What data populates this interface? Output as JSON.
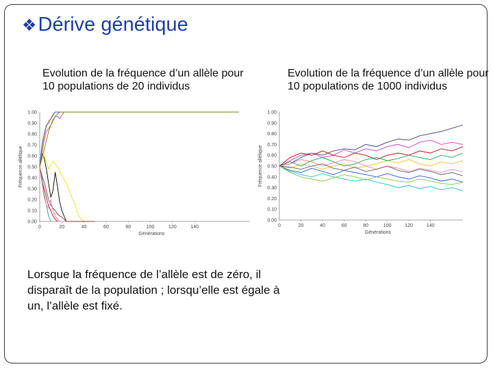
{
  "slide": {
    "title": "Dérive génétique",
    "bullet_icon": "diamond-bullet-icon",
    "body": "Lorsque la fréquence de l’allèle est de zéro, il disparaît de la population ; lorsqu’elle est égale à un, l’allèle est fixé.",
    "title_color": "#1f3fa8"
  },
  "chart_data": [
    {
      "type": "line",
      "title": "Evolution de la fréquence d’un allèle pour 10 populations de 20 individus",
      "xlabel": "Générations",
      "ylabel": "Fréquence allélique",
      "xlim": [
        0,
        190
      ],
      "ylim": [
        0,
        1
      ],
      "xticks": [
        "0",
        "20",
        "40",
        "60",
        "80",
        "100",
        "120",
        "140"
      ],
      "yticks": [
        "0.00",
        "0.10",
        "0.20",
        "0.30",
        "0.40",
        "0.50",
        "0.60",
        "0.70",
        "0.80",
        "0.90",
        "1.00"
      ],
      "series": [
        {
          "color": "#c01010",
          "x": [
            0,
            2,
            4,
            6,
            8,
            10,
            12,
            14,
            16
          ],
          "y": [
            0.5,
            0.38,
            0.3,
            0.22,
            0.14,
            0.1,
            0.05,
            0.02,
            0
          ]
        },
        {
          "color": "#000000",
          "x": [
            0,
            2,
            4,
            6,
            8,
            10,
            12,
            14,
            16,
            18,
            20,
            22,
            24
          ],
          "y": [
            0.5,
            0.62,
            0.58,
            0.48,
            0.35,
            0.22,
            0.28,
            0.45,
            0.32,
            0.18,
            0.1,
            0.05,
            0
          ]
        },
        {
          "color": "#f0a020",
          "x": [
            0,
            2,
            4,
            6,
            8,
            10,
            12,
            14,
            16,
            18,
            20,
            22
          ],
          "y": [
            0.5,
            0.65,
            0.78,
            0.86,
            0.92,
            0.94,
            0.98,
            1,
            1,
            1,
            1,
            1
          ]
        },
        {
          "color": "#c040c0",
          "x": [
            0,
            2,
            4,
            6,
            8,
            10,
            12,
            14,
            16,
            18,
            20,
            22,
            24,
            26,
            28
          ],
          "y": [
            0.5,
            0.62,
            0.74,
            0.82,
            0.85,
            0.88,
            0.93,
            0.96,
            0.96,
            0.94,
            0.97,
            1,
            1,
            1,
            1
          ]
        },
        {
          "color": "#f0e020",
          "x": [
            0,
            4,
            8,
            12,
            16,
            20,
            24,
            28,
            32,
            34,
            36,
            38,
            40
          ],
          "y": [
            0.5,
            0.62,
            0.48,
            0.55,
            0.5,
            0.42,
            0.35,
            0.25,
            0.15,
            0.08,
            0.04,
            0.02,
            0
          ]
        },
        {
          "color": "#2060d0",
          "x": [
            0,
            2,
            4,
            6,
            8,
            10,
            12,
            14,
            16,
            18,
            20,
            22,
            24,
            26,
            30
          ],
          "y": [
            0.5,
            0.7,
            0.8,
            0.88,
            0.9,
            0.94,
            0.97,
            1,
            1,
            1,
            1,
            1,
            1,
            1,
            1
          ]
        },
        {
          "color": "#20a0a0",
          "x": [
            0,
            2,
            4,
            6,
            8,
            10
          ],
          "y": [
            0.5,
            0.4,
            0.25,
            0.15,
            0.05,
            0
          ]
        },
        {
          "color": "#808000",
          "x": [
            0,
            2,
            4,
            6,
            8,
            10,
            12,
            14,
            16,
            18,
            20,
            22,
            24,
            26,
            28,
            30,
            40,
            60,
            80,
            100,
            120,
            140,
            160,
            180
          ],
          "y": [
            0.5,
            0.58,
            0.66,
            0.74,
            0.82,
            0.88,
            0.92,
            0.96,
            0.98,
            1,
            1,
            1,
            1,
            1,
            1,
            1,
            1,
            1,
            1,
            1,
            1,
            1,
            1,
            1
          ]
        },
        {
          "color": "#8b3a2a",
          "x": [
            0,
            2,
            4,
            6,
            8,
            10,
            12,
            14,
            16,
            18,
            20,
            22,
            24,
            26,
            28,
            30,
            32,
            34,
            36,
            38,
            40,
            42,
            44,
            46,
            48,
            50
          ],
          "y": [
            0.5,
            0.42,
            0.36,
            0.28,
            0.2,
            0.15,
            0.12,
            0.1,
            0.07,
            0.05,
            0.04,
            0.02,
            0,
            0,
            0,
            0,
            0,
            0,
            0,
            0,
            0,
            0,
            0,
            0,
            0,
            0
          ]
        },
        {
          "color": "#f080b0",
          "x": [
            0,
            2,
            4,
            6,
            8,
            10,
            12,
            14,
            16,
            18,
            20
          ],
          "y": [
            0.5,
            0.35,
            0.22,
            0.15,
            0.12,
            0.2,
            0.1,
            0.05,
            0.02,
            0,
            0
          ]
        }
      ]
    },
    {
      "type": "line",
      "title": "Evolution de la fréquence d’un allèle pour 10 populations de 1000 individus",
      "xlabel": "Générations",
      "ylabel": "Fréquence allélique",
      "xlim": [
        0,
        170
      ],
      "ylim": [
        0,
        1
      ],
      "xticks": [
        "0",
        "20",
        "40",
        "60",
        "80",
        "100",
        "120",
        "140"
      ],
      "yticks": [
        "0.00",
        "0.10",
        "0.20",
        "0.30",
        "0.40",
        "0.50",
        "0.60",
        "0.70",
        "0.80",
        "0.90",
        "1.00"
      ],
      "series": [
        {
          "color": "#404080",
          "x": [
            0,
            10,
            20,
            30,
            40,
            50,
            60,
            70,
            80,
            90,
            100,
            110,
            120,
            130,
            140,
            150,
            160,
            170
          ],
          "y": [
            0.5,
            0.52,
            0.58,
            0.62,
            0.6,
            0.64,
            0.66,
            0.65,
            0.7,
            0.68,
            0.72,
            0.75,
            0.74,
            0.78,
            0.8,
            0.82,
            0.85,
            0.88
          ]
        },
        {
          "color": "#c040c0",
          "x": [
            0,
            10,
            20,
            30,
            40,
            50,
            60,
            70,
            80,
            90,
            100,
            110,
            120,
            130,
            140,
            150,
            160,
            170
          ],
          "y": [
            0.5,
            0.55,
            0.6,
            0.62,
            0.58,
            0.6,
            0.65,
            0.62,
            0.66,
            0.64,
            0.68,
            0.7,
            0.67,
            0.72,
            0.74,
            0.7,
            0.72,
            0.7
          ]
        },
        {
          "color": "#c01010",
          "x": [
            0,
            10,
            20,
            30,
            40,
            50,
            60,
            70,
            80,
            90,
            100,
            110,
            120,
            130,
            140,
            150,
            160,
            170
          ],
          "y": [
            0.5,
            0.58,
            0.62,
            0.6,
            0.64,
            0.6,
            0.58,
            0.62,
            0.6,
            0.56,
            0.6,
            0.62,
            0.6,
            0.64,
            0.62,
            0.66,
            0.64,
            0.68
          ]
        },
        {
          "color": "#f0c020",
          "x": [
            0,
            10,
            20,
            30,
            40,
            50,
            60,
            70,
            80,
            90,
            100,
            110,
            120,
            130,
            140,
            150,
            160,
            170
          ],
          "y": [
            0.5,
            0.48,
            0.52,
            0.5,
            0.47,
            0.5,
            0.52,
            0.48,
            0.5,
            0.52,
            0.55,
            0.53,
            0.56,
            0.52,
            0.5,
            0.54,
            0.52,
            0.55
          ]
        },
        {
          "color": "#20a060",
          "x": [
            0,
            10,
            20,
            30,
            40,
            50,
            60,
            70,
            80,
            90,
            100,
            110,
            120,
            130,
            140,
            150,
            160,
            170
          ],
          "y": [
            0.5,
            0.54,
            0.5,
            0.55,
            0.58,
            0.54,
            0.5,
            0.52,
            0.56,
            0.58,
            0.55,
            0.57,
            0.6,
            0.58,
            0.56,
            0.6,
            0.58,
            0.62
          ]
        },
        {
          "color": "#2060d0",
          "x": [
            0,
            10,
            20,
            30,
            40,
            50,
            60,
            70,
            80,
            90,
            100,
            110,
            120,
            130,
            140,
            150,
            160,
            170
          ],
          "y": [
            0.5,
            0.46,
            0.44,
            0.48,
            0.45,
            0.42,
            0.46,
            0.44,
            0.42,
            0.4,
            0.43,
            0.4,
            0.38,
            0.41,
            0.39,
            0.36,
            0.38,
            0.35
          ]
        },
        {
          "color": "#20c0c0",
          "x": [
            0,
            10,
            20,
            30,
            40,
            50,
            60,
            70,
            80,
            90,
            100,
            110,
            120,
            130,
            140,
            150,
            160,
            170
          ],
          "y": [
            0.5,
            0.45,
            0.42,
            0.4,
            0.43,
            0.4,
            0.38,
            0.36,
            0.38,
            0.35,
            0.33,
            0.3,
            0.32,
            0.29,
            0.31,
            0.28,
            0.3,
            0.27
          ]
        },
        {
          "color": "#90c040",
          "x": [
            0,
            10,
            20,
            30,
            40,
            50,
            60,
            70,
            80,
            90,
            100,
            110,
            120,
            130,
            140,
            150,
            160,
            170
          ],
          "y": [
            0.5,
            0.44,
            0.4,
            0.38,
            0.36,
            0.39,
            0.42,
            0.4,
            0.37,
            0.4,
            0.38,
            0.36,
            0.35,
            0.38,
            0.36,
            0.34,
            0.33,
            0.35
          ]
        },
        {
          "color": "#f080b0",
          "x": [
            0,
            10,
            20,
            30,
            40,
            50,
            60,
            70,
            80,
            90,
            100,
            110,
            120,
            130,
            140,
            150,
            160,
            170
          ],
          "y": [
            0.5,
            0.52,
            0.56,
            0.54,
            0.5,
            0.53,
            0.56,
            0.54,
            0.5,
            0.47,
            0.5,
            0.48,
            0.45,
            0.48,
            0.46,
            0.44,
            0.47,
            0.45
          ]
        },
        {
          "color": "#606060",
          "x": [
            0,
            10,
            20,
            30,
            40,
            50,
            60,
            70,
            80,
            90,
            100,
            110,
            120,
            130,
            140,
            150,
            160,
            170
          ],
          "y": [
            0.5,
            0.49,
            0.47,
            0.5,
            0.52,
            0.48,
            0.46,
            0.49,
            0.45,
            0.47,
            0.5,
            0.46,
            0.44,
            0.47,
            0.45,
            0.42,
            0.44,
            0.41
          ]
        }
      ]
    }
  ]
}
